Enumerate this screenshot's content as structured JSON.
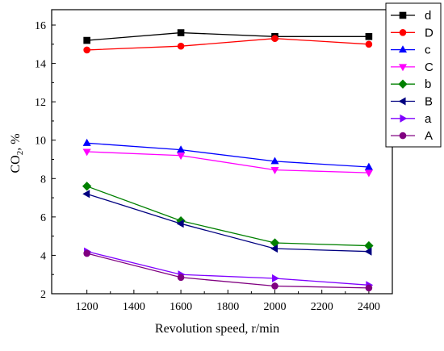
{
  "chart_data": {
    "type": "line",
    "xlabel": "Revolution speed, r/min",
    "ylabel_main": "CO",
    "ylabel_sub": "2",
    "ylabel_suffix": ", %",
    "x": [
      1200,
      1600,
      2000,
      2400
    ],
    "xlim": [
      1050,
      2500
    ],
    "ylim": [
      2,
      16.8
    ],
    "xticks": [
      1200,
      1400,
      1600,
      1800,
      2000,
      2200,
      2400
    ],
    "yticks": [
      2,
      4,
      6,
      8,
      10,
      12,
      14,
      16
    ],
    "legend_position": "top-right",
    "series": [
      {
        "name": "d",
        "color": "#000000",
        "marker": "square",
        "values": [
          15.2,
          15.6,
          15.4,
          15.4
        ]
      },
      {
        "name": "D",
        "color": "#ff0000",
        "marker": "circle",
        "values": [
          14.7,
          14.9,
          15.3,
          15.0
        ]
      },
      {
        "name": "c",
        "color": "#0000ff",
        "marker": "triangle-up",
        "values": [
          9.85,
          9.5,
          8.9,
          8.6
        ]
      },
      {
        "name": "C",
        "color": "#ff00ff",
        "marker": "triangle-down",
        "values": [
          9.4,
          9.2,
          8.45,
          8.3
        ]
      },
      {
        "name": "b",
        "color": "#008000",
        "marker": "diamond",
        "values": [
          7.6,
          5.8,
          4.65,
          4.5
        ]
      },
      {
        "name": "B",
        "color": "#000080",
        "marker": "triangle-left",
        "values": [
          7.2,
          5.65,
          4.35,
          4.2
        ]
      },
      {
        "name": "a",
        "color": "#8000ff",
        "marker": "triangle-right",
        "values": [
          4.2,
          3.0,
          2.8,
          2.45
        ]
      },
      {
        "name": "A",
        "color": "#800080",
        "marker": "circle",
        "values": [
          4.1,
          2.85,
          2.4,
          2.3
        ]
      }
    ]
  }
}
